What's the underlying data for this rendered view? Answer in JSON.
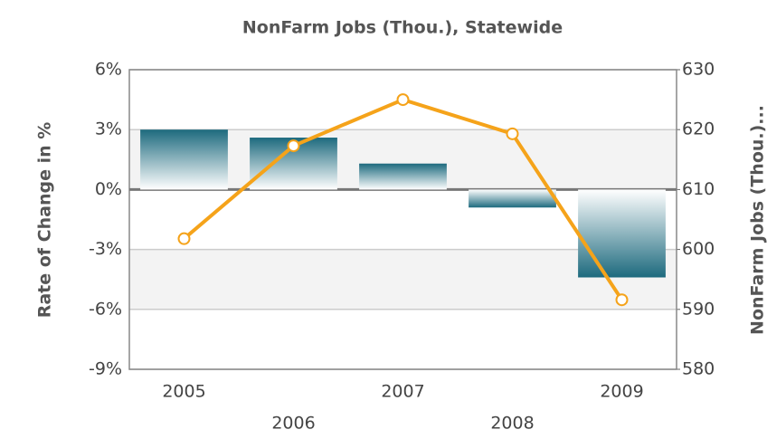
{
  "chart_data": {
    "type": "bar-line",
    "title": "NonFarm Jobs (Thou.), Statewide",
    "ylabel": "Rate of Change in %",
    "y2label": "NonFarm Jobs (Thou.)...",
    "categories": [
      "2005",
      "2006",
      "2007",
      "2008",
      "2009"
    ],
    "series": [
      {
        "type": "bar",
        "color": "#1d6a7e",
        "values": [
          3.0,
          2.6,
          1.3,
          -0.9,
          -4.4
        ]
      },
      {
        "type": "line",
        "color": "#f5a31a",
        "axis": "y2",
        "values": [
          601.8,
          617.3,
          625.0,
          619.3,
          591.6
        ]
      }
    ],
    "ylim": [
      -9,
      6
    ],
    "yticks": [
      {
        "value": -9,
        "label": "-9%"
      },
      {
        "value": -6,
        "label": "-6%"
      },
      {
        "value": -3,
        "label": "-3%"
      },
      {
        "value": 0,
        "label": "0%"
      },
      {
        "value": 3,
        "label": "3%"
      },
      {
        "value": 6,
        "label": "6%"
      }
    ],
    "y2lim": [
      580,
      630
    ],
    "y2ticks": [
      580,
      590,
      600,
      610,
      620,
      630
    ],
    "grid": true
  }
}
